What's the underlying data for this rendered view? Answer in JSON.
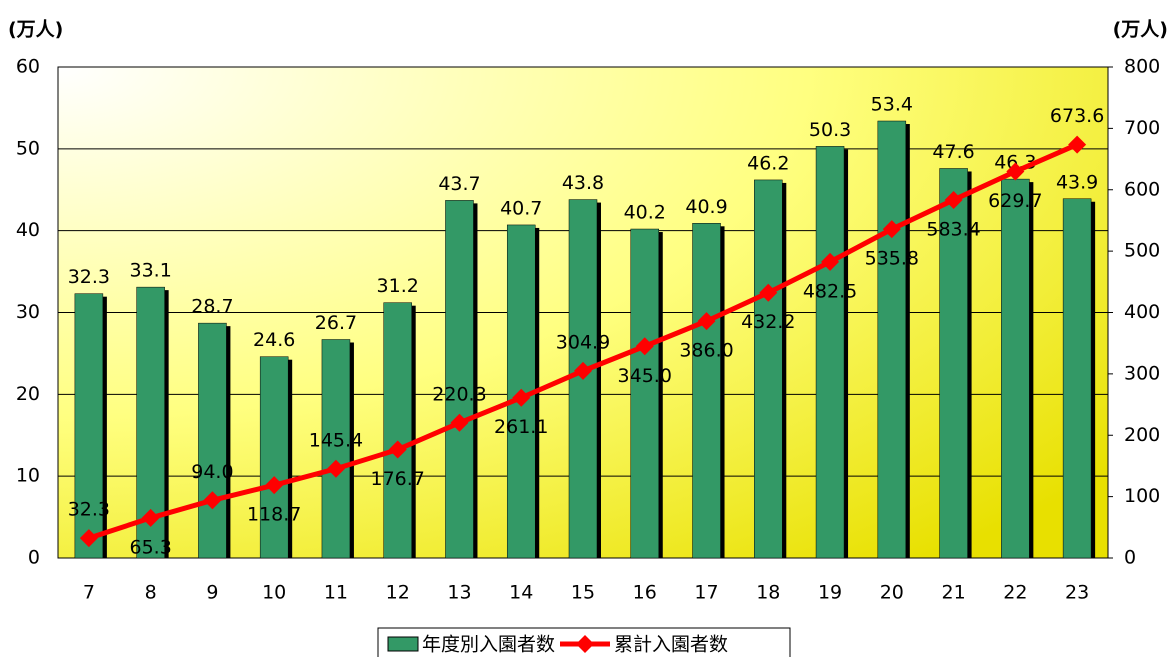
{
  "chart_data": {
    "type": "bar_line",
    "y_label": "(万人)",
    "y2_label": "(万人)",
    "categories": [
      "7",
      "8",
      "9",
      "10",
      "11",
      "12",
      "13",
      "14",
      "15",
      "16",
      "17",
      "18",
      "19",
      "20",
      "21",
      "22",
      "23"
    ],
    "series": [
      {
        "name": "年度別入園者数",
        "color": "#339966",
        "type": "bar",
        "values": [
          32.3,
          33.1,
          28.7,
          24.6,
          26.7,
          31.2,
          43.7,
          40.7,
          43.8,
          40.2,
          40.9,
          46.2,
          50.3,
          53.4,
          47.6,
          46.3,
          43.9
        ],
        "value_labels": [
          "32.3",
          "33.1",
          "28.7",
          "24.6",
          "26.7",
          "31.2",
          "43.7",
          "40.7",
          "43.8",
          "40.2",
          "40.9",
          "46.2",
          "50.3",
          "53.4",
          "47.6",
          "46.3",
          "43.9"
        ]
      },
      {
        "name": "累計入園者数",
        "color": "#ff0000",
        "type": "line",
        "axis": "y2",
        "values": [
          32.3,
          65.3,
          94.0,
          118.7,
          145.4,
          176.7,
          220.3,
          261.1,
          304.9,
          345.0,
          386.0,
          432.2,
          482.5,
          535.8,
          583.4,
          629.7,
          673.6
        ],
        "value_labels": [
          "32.3",
          "65.3",
          "94.0",
          "118.7",
          "145.4",
          "176.7",
          "220.3",
          "261.1",
          "304.9",
          "345.0",
          "386.0",
          "432.2",
          "482.5",
          "535.8",
          "583.4",
          "629.7",
          "673.6"
        ]
      }
    ],
    "ylim": [
      0,
      60
    ],
    "yticks": [
      0,
      10,
      20,
      30,
      40,
      50,
      60
    ],
    "y2lim": [
      0,
      800
    ],
    "y2ticks": [
      0,
      100,
      200,
      300,
      400,
      500,
      600,
      700,
      800
    ],
    "grid": true,
    "legend": "bottom"
  }
}
